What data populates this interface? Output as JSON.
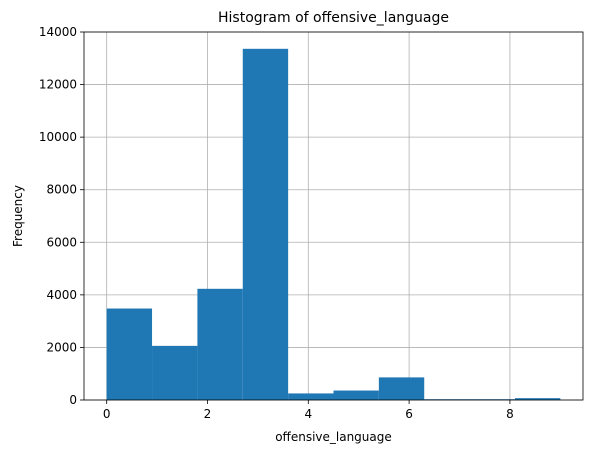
{
  "chart_data": {
    "type": "bar",
    "title": "Histogram of offensive_language",
    "xlabel": "offensive_language",
    "ylabel": "Frequency",
    "bins": [
      {
        "x0": 0.0,
        "x1": 0.9,
        "count": 3480
      },
      {
        "x0": 0.9,
        "x1": 1.8,
        "count": 2060
      },
      {
        "x0": 1.8,
        "x1": 2.7,
        "count": 4230
      },
      {
        "x0": 2.7,
        "x1": 3.6,
        "count": 13360
      },
      {
        "x0": 3.6,
        "x1": 4.5,
        "count": 250
      },
      {
        "x0": 4.5,
        "x1": 5.4,
        "count": 360
      },
      {
        "x0": 5.4,
        "x1": 6.3,
        "count": 860
      },
      {
        "x0": 6.3,
        "x1": 7.2,
        "count": 30
      },
      {
        "x0": 7.2,
        "x1": 8.1,
        "count": 30
      },
      {
        "x0": 8.1,
        "x1": 9.0,
        "count": 70
      }
    ],
    "xlim": [
      -0.45,
      9.45
    ],
    "ylim": [
      0,
      14000
    ],
    "xticks": [
      0,
      2,
      4,
      6,
      8
    ],
    "yticks": [
      0,
      2000,
      4000,
      6000,
      8000,
      10000,
      12000,
      14000
    ],
    "grid": true,
    "bar_color": "#1f77b4",
    "grid_color": "#b0b0b0"
  }
}
